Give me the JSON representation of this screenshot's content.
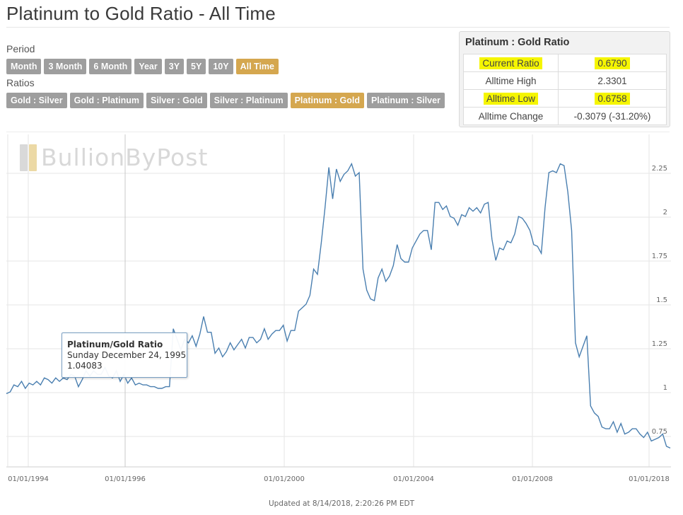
{
  "page": {
    "title": "Platinum to Gold Ratio - All Time",
    "updated": "Updated at 8/14/2018, 2:20:26 PM EDT"
  },
  "period": {
    "label": "Period",
    "buttons": [
      "Month",
      "3 Month",
      "6 Month",
      "Year",
      "3Y",
      "5Y",
      "10Y",
      "All Time"
    ],
    "active": "All Time"
  },
  "ratios": {
    "label": "Ratios",
    "buttons": [
      "Gold : Silver",
      "Gold : Platinum",
      "Silver : Gold",
      "Silver : Platinum",
      "Platinum : Gold",
      "Platinum : Silver"
    ],
    "active": "Platinum : Gold"
  },
  "ratio_box": {
    "title": "Platinum : Gold Ratio",
    "rows": [
      {
        "label": "Current Ratio",
        "value": "0.6790"
      },
      {
        "label": "Alltime High",
        "value": "2.3301"
      },
      {
        "label": "Alltime Low",
        "value": "0.6758"
      },
      {
        "label": "Alltime Change",
        "value": "-0.3079 (-31.20%)"
      }
    ]
  },
  "logo": {
    "text": "BullionByPost"
  },
  "tooltip": {
    "title": "Platinum/Gold Ratio",
    "date": "Sunday December 24, 1995",
    "value": "1.04083"
  },
  "colors": {
    "line": "#4a7fb0",
    "button": "#9e9e9e",
    "button_active": "#d5a74f",
    "highlight": "#f5f500",
    "negative": "#c0392b"
  },
  "chart_data": {
    "type": "line",
    "title": "",
    "xlabel": "",
    "ylabel": "",
    "x_ticks": [
      "01/01/1994",
      "01/01/1996",
      "01/01/2000",
      "01/01/2004",
      "01/01/2008",
      "01/01/2018"
    ],
    "y_ticks": [
      0.75,
      1,
      1.25,
      1.5,
      1.75,
      2,
      2.25
    ],
    "ylim": [
      0.6,
      2.5
    ],
    "grid": true,
    "legend": "none",
    "series": [
      {
        "values": [
          0.99,
          1.0,
          1.04,
          1.03,
          1.06,
          1.02,
          1.05,
          1.04,
          1.06,
          1.04,
          1.08,
          1.07,
          1.05,
          1.08,
          1.06,
          1.08,
          1.07,
          1.1,
          1.09,
          1.03,
          1.07,
          1.12,
          1.09,
          1.12,
          1.1,
          1.1,
          1.14,
          1.09,
          1.08,
          1.12,
          1.06,
          1.1,
          1.05,
          1.08,
          1.04,
          1.05,
          1.04,
          1.04,
          1.03,
          1.03,
          1.02,
          1.02,
          1.03,
          1.03,
          1.36,
          1.3,
          1.24,
          1.3,
          1.28,
          1.32,
          1.26,
          1.33,
          1.43,
          1.34,
          1.34,
          1.22,
          1.25,
          1.2,
          1.23,
          1.28,
          1.24,
          1.27,
          1.3,
          1.25,
          1.31,
          1.31,
          1.28,
          1.3,
          1.36,
          1.3,
          1.33,
          1.35,
          1.35,
          1.38,
          1.29,
          1.35,
          1.35,
          1.46,
          1.48,
          1.5,
          1.55,
          1.7,
          1.67,
          1.85,
          2.05,
          2.28,
          2.1,
          2.27,
          2.2,
          2.24,
          2.26,
          2.3,
          2.23,
          2.25,
          1.7,
          1.58,
          1.53,
          1.52,
          1.65,
          1.7,
          1.63,
          1.66,
          1.72,
          1.84,
          1.76,
          1.74,
          1.74,
          1.82,
          1.86,
          1.9,
          1.92,
          1.92,
          1.81,
          2.08,
          2.08,
          2.04,
          2.06,
          2.0,
          1.99,
          1.95,
          2.01,
          2.0,
          2.05,
          2.03,
          2.05,
          2.02,
          2.07,
          2.08,
          1.87,
          1.75,
          1.82,
          1.81,
          1.86,
          1.85,
          1.9,
          2.0,
          1.99,
          1.96,
          1.92,
          1.84,
          1.83,
          1.79,
          2.05,
          2.25,
          2.26,
          2.25,
          2.3,
          2.29,
          2.14,
          1.92,
          1.28,
          1.2,
          1.26,
          1.32,
          0.92,
          0.88,
          0.86,
          0.8,
          0.79,
          0.79,
          0.83,
          0.77,
          0.82,
          0.76,
          0.77,
          0.79,
          0.79,
          0.76,
          0.74,
          0.77,
          0.72,
          0.73,
          0.74,
          0.76,
          0.69,
          0.68
        ]
      }
    ]
  }
}
